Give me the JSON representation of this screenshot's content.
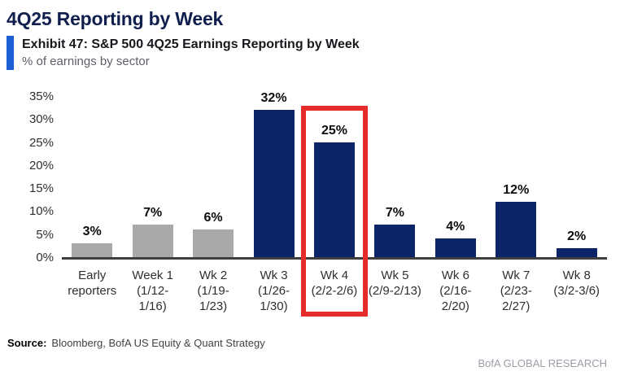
{
  "header": {
    "title": "4Q25 Reporting by Week",
    "exhibit_title": "Exhibit 47: S&P 500 4Q25 Earnings Reporting by Week",
    "subtitle": "% of earnings by sector"
  },
  "chart_data": {
    "type": "bar",
    "title": "Exhibit 47: S&P 500 4Q25 Earnings Reporting by Week",
    "units_label": "% of earnings by sector",
    "categories": [
      "Early reporters",
      "Week 1 (1/12-1/16)",
      "Wk 2 (1/19-1/23)",
      "Wk 3 (1/26-1/30)",
      "Wk 4 (2/2-2/6)",
      "Wk 5 (2/9-2/13)",
      "Wk 6 (2/16-2/20)",
      "Wk 7 (2/23-2/27)",
      "Wk 8 (3/2-3/6)"
    ],
    "category_lines": [
      [
        "Early",
        "reporters"
      ],
      [
        "Week 1",
        "(1/12-",
        "1/16)"
      ],
      [
        "Wk 2",
        "(1/19-",
        "1/23)"
      ],
      [
        "Wk 3",
        "(1/26-",
        "1/30)"
      ],
      [
        "Wk 4",
        "(2/2-2/6)"
      ],
      [
        "Wk 5",
        "(2/9-2/13)"
      ],
      [
        "Wk 6",
        "(2/16-",
        "2/20)"
      ],
      [
        "Wk 7",
        "(2/23-",
        "2/27)"
      ],
      [
        "Wk 8",
        "(3/2-3/6)"
      ]
    ],
    "values": [
      3,
      7,
      6,
      32,
      25,
      7,
      4,
      12,
      2
    ],
    "value_suffix": "%",
    "bar_colors": [
      "#a9a9a9",
      "#a9a9a9",
      "#a9a9a9",
      "#0c2569",
      "#0c2569",
      "#0c2569",
      "#0c2569",
      "#0c2569",
      "#0c2569"
    ],
    "ylim": [
      0,
      35
    ],
    "ytick_labels": [
      "35%",
      "30%",
      "25%",
      "20%",
      "15%",
      "10%",
      "5%",
      "0%"
    ],
    "ytick_values": [
      35,
      30,
      25,
      20,
      15,
      10,
      5,
      0
    ],
    "grid": "off",
    "legend": "none",
    "highlight": {
      "index": 4,
      "color": "#e52b2b"
    }
  },
  "footer": {
    "source_label": "Source:",
    "source_text": "Bloomberg, BofA US Equity & Quant Strategy",
    "brand": "BofA GLOBAL RESEARCH"
  },
  "colors": {
    "navy_bar": "#0c2569",
    "gray_bar": "#a9a9a9",
    "highlight_red": "#e52b2b",
    "accent_blue": "#1b5fd3",
    "title_navy": "#101f4e",
    "axis_line": "#3e3e3e"
  }
}
